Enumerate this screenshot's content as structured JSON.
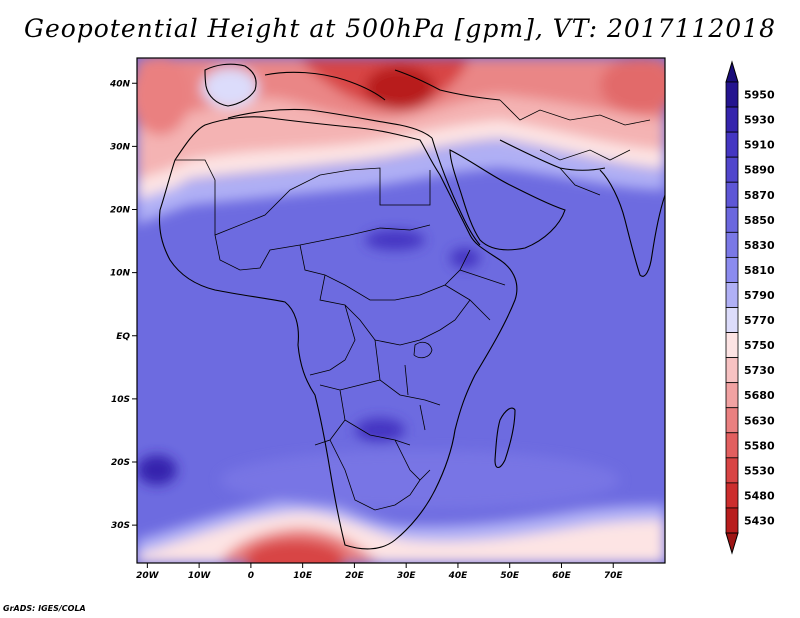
{
  "title": "Geopotential Height at 500hPa [gpm], VT: 2017112018",
  "credit": "GrADS: IGES/COLA",
  "map": {
    "lat_range": [
      -36,
      44
    ],
    "lon_range": [
      -22,
      80
    ],
    "lat_ticks": [
      {
        "value": 40,
        "label": "40N"
      },
      {
        "value": 30,
        "label": "30N"
      },
      {
        "value": 20,
        "label": "20N"
      },
      {
        "value": 10,
        "label": "10N"
      },
      {
        "value": 0,
        "label": "EQ"
      },
      {
        "value": -10,
        "label": "10S"
      },
      {
        "value": -20,
        "label": "20S"
      },
      {
        "value": -30,
        "label": "30S"
      }
    ],
    "lon_ticks": [
      {
        "value": -20,
        "label": "20W"
      },
      {
        "value": -10,
        "label": "10W"
      },
      {
        "value": 0,
        "label": "0"
      },
      {
        "value": 10,
        "label": "10E"
      },
      {
        "value": 20,
        "label": "20E"
      },
      {
        "value": 30,
        "label": "30E"
      },
      {
        "value": 40,
        "label": "40E"
      },
      {
        "value": 50,
        "label": "50E"
      },
      {
        "value": 60,
        "label": "60E"
      },
      {
        "value": 70,
        "label": "70E"
      }
    ]
  },
  "colorbar": {
    "levels": [
      "5950",
      "5930",
      "5910",
      "5890",
      "5870",
      "5850",
      "5830",
      "5810",
      "5790",
      "5770",
      "5750",
      "5730",
      "5680",
      "5630",
      "5580",
      "5530",
      "5480",
      "5430"
    ],
    "colors": [
      "#24148f",
      "#3524ad",
      "#4436c2",
      "#5146cc",
      "#5e56d6",
      "#6b67de",
      "#7a78e6",
      "#8b8bef",
      "#b0b0f5",
      "#dcdcfb",
      "#fde4e4",
      "#f7c2c2",
      "#f1a2a2",
      "#ea8080",
      "#e25f5f",
      "#d84444",
      "#cc2d2d",
      "#b81d1d"
    ],
    "top_arrow_color": "#1a0d7a",
    "bottom_arrow_color": "#9e1515"
  },
  "regions": {
    "background_color": "#6d6be0",
    "ocean_color": "#5f5fd6",
    "land_color": "#5a5ad4"
  }
}
